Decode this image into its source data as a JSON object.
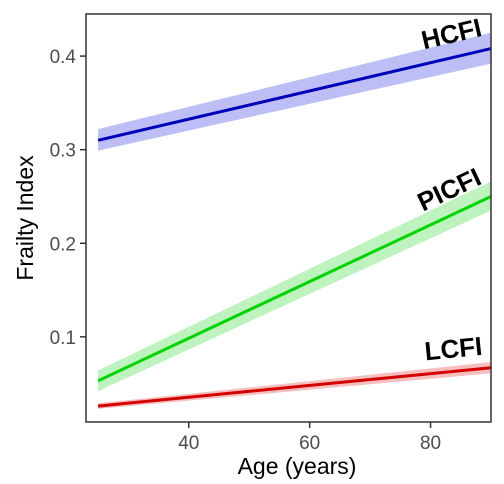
{
  "chart_data": {
    "type": "line",
    "title": "",
    "xlabel": "Age (years)",
    "ylabel": "Frailty Index",
    "xlim": [
      23,
      90
    ],
    "ylim": [
      0.009,
      0.445
    ],
    "x_ticks": [
      40,
      60,
      80
    ],
    "y_ticks": [
      0.1,
      0.2,
      0.3,
      0.4
    ],
    "x_tick_labels": [
      "40",
      "60",
      "80"
    ],
    "y_tick_labels": [
      "0.1",
      "0.2",
      "0.3",
      "0.4"
    ],
    "grid": false,
    "legend": "none",
    "series": [
      {
        "name": "HCFI",
        "color": "#0000b8",
        "band_color": "#b3b3f5",
        "x": [
          25,
          90
        ],
        "y": [
          0.31,
          0.408
        ],
        "ci_lower": [
          0.299,
          0.392
        ],
        "ci_upper": [
          0.322,
          0.425
        ]
      },
      {
        "name": "PICFI",
        "color": "#00d400",
        "band_color": "#b3f0b3",
        "x": [
          25,
          90
        ],
        "y": [
          0.053,
          0.25
        ],
        "ci_lower": [
          0.042,
          0.235
        ],
        "ci_upper": [
          0.064,
          0.266
        ]
      },
      {
        "name": "LCFI",
        "color": "#d40000",
        "band_color": "#f5b3b3",
        "x": [
          25,
          90
        ],
        "y": [
          0.026,
          0.067
        ],
        "ci_lower": [
          0.023,
          0.061
        ],
        "ci_upper": [
          0.029,
          0.073
        ]
      }
    ]
  }
}
